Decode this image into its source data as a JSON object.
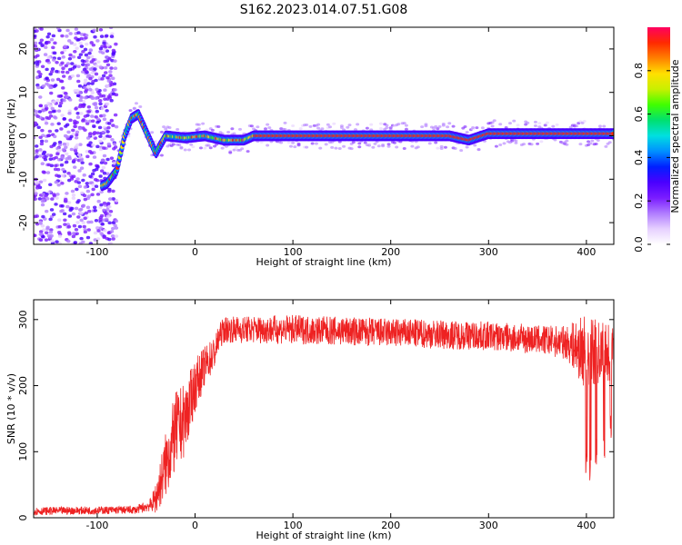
{
  "title": "S162.2023.014.07.51.G08",
  "colors": {
    "snr_line": "#ee2222",
    "colormap": [
      "#ffffff",
      "#e6d0ff",
      "#b07cff",
      "#7a1cff",
      "#4a00ff",
      "#0020ff",
      "#0090ff",
      "#00e0e0",
      "#00e070",
      "#40ff00",
      "#c8f000",
      "#ffe000",
      "#ff8000",
      "#ff2a00",
      "#ff0060"
    ]
  },
  "chart_data": [
    {
      "type": "heatmap",
      "name": "spectrogram",
      "xlabel": "Height of straight line (km)",
      "ylabel": "Frequency (Hz)",
      "xlim": [
        -165,
        428
      ],
      "ylim": [
        -25,
        25
      ],
      "xticks": [
        -100,
        0,
        100,
        200,
        300,
        400
      ],
      "yticks": [
        -20,
        -10,
        0,
        10,
        20
      ],
      "ridge": {
        "description_points_x": [
          -165,
          -140,
          -120,
          -100,
          -90,
          -80,
          -72,
          -65,
          -58,
          -52,
          -46,
          -40,
          -30,
          -10,
          10,
          30,
          50,
          60,
          200,
          260,
          280,
          300,
          420
        ],
        "description_points_y": [
          -13,
          -13,
          -13,
          -12,
          -11,
          -8,
          0,
          4,
          5,
          2,
          -1,
          -4,
          0,
          -0.5,
          0,
          -1,
          -1,
          0,
          0,
          0,
          -1,
          0.5,
          0.5
        ]
      },
      "colorbar": {
        "label": "Normalized spectral amplitude",
        "range": [
          0,
          1
        ],
        "ticks": [
          0.0,
          0.2,
          0.4,
          0.6,
          0.8
        ]
      }
    },
    {
      "type": "line",
      "name": "snr",
      "xlabel": "Height of straight line (km)",
      "ylabel": "SNR (10 * v/v)",
      "xlim": [
        -165,
        428
      ],
      "ylim": [
        0,
        330
      ],
      "xticks": [
        -100,
        0,
        100,
        200,
        300,
        400
      ],
      "yticks": [
        0,
        100,
        200,
        300
      ],
      "envelope_x": [
        -165,
        -60,
        -45,
        -40,
        -30,
        -20,
        -10,
        0,
        10,
        20,
        25,
        30,
        100,
        200,
        300,
        350,
        380,
        400,
        428
      ],
      "envelope_center": [
        10,
        12,
        20,
        30,
        80,
        130,
        150,
        200,
        230,
        250,
        275,
        285,
        285,
        280,
        275,
        270,
        265,
        250,
        250
      ],
      "envelope_noise": [
        6,
        6,
        10,
        25,
        50,
        60,
        55,
        40,
        30,
        25,
        20,
        20,
        22,
        22,
        22,
        22,
        25,
        60,
        40
      ],
      "dropouts": [
        {
          "x": 400,
          "min": 60
        },
        {
          "x": 404,
          "min": 55
        },
        {
          "x": 410,
          "min": 80
        },
        {
          "x": 418,
          "min": 90
        },
        {
          "x": 425,
          "min": 120
        }
      ]
    }
  ],
  "labels": {
    "colorbar_ticks": [
      "0.0",
      "0.2",
      "0.4",
      "0.6",
      "0.8"
    ]
  }
}
